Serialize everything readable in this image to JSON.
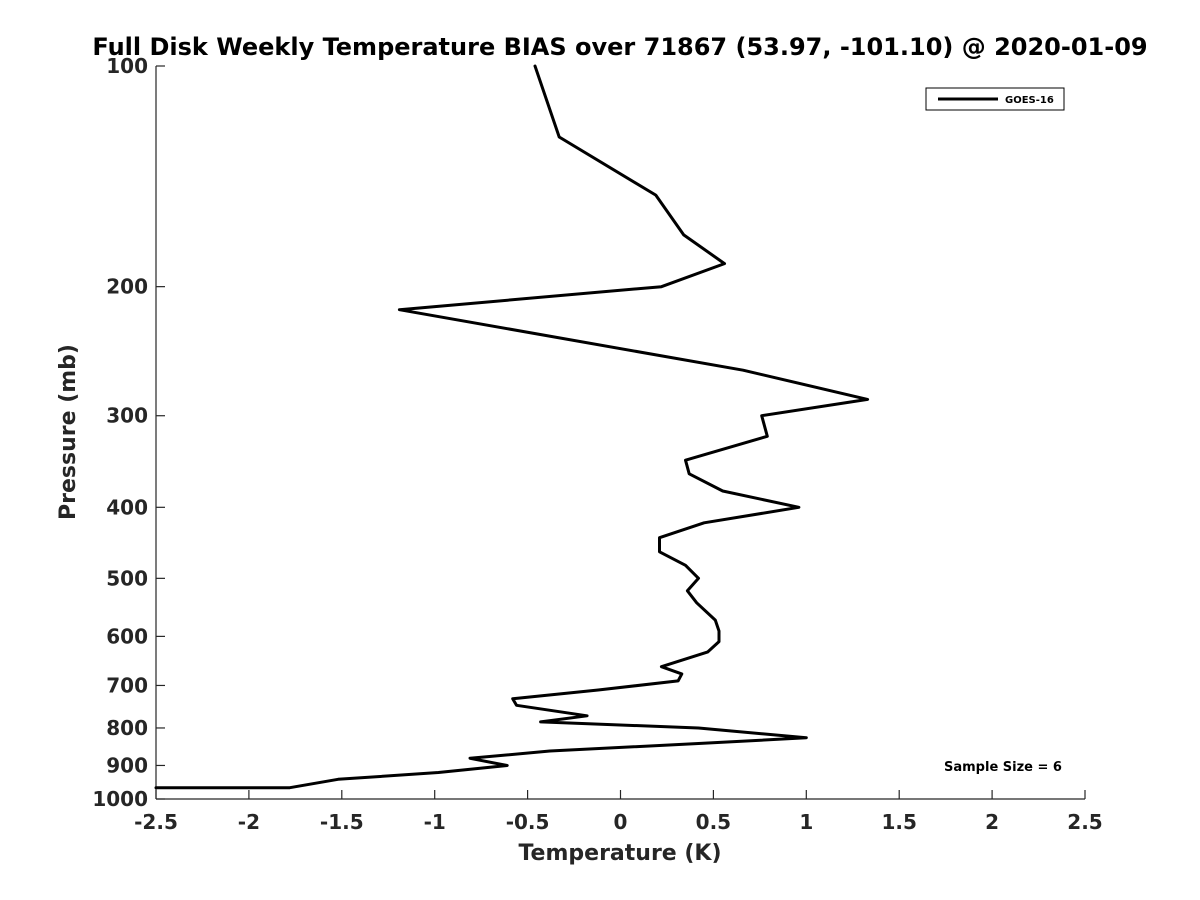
{
  "chart_data": {
    "type": "line",
    "title": "Full Disk Weekly Temperature BIAS over 71867 (53.97, -101.10) @ 2020-01-09",
    "xlabel": "Temperature (K)",
    "ylabel": "Pressure (mb)",
    "xlim": [
      -2.5,
      2.5
    ],
    "ylim": [
      1000,
      100
    ],
    "y_scale": "log",
    "grid": false,
    "xticks": [
      -2.5,
      -2,
      -1.5,
      -1,
      -0.5,
      0,
      0.5,
      1,
      1.5,
      2,
      2.5
    ],
    "xtick_labels": [
      "-2.5",
      "-2",
      "-1.5",
      "-1",
      "-0.5",
      "0",
      "0.5",
      "1",
      "1.5",
      "2",
      "2.5"
    ],
    "yticks": [
      100,
      200,
      300,
      400,
      500,
      600,
      700,
      800,
      900,
      1000
    ],
    "ytick_labels": [
      "100",
      "200",
      "300",
      "400",
      "500",
      "600",
      "700",
      "800",
      "900",
      "1000"
    ],
    "legend_position": "top-right",
    "annotation": "Sample Size = 6",
    "series": [
      {
        "name": "GOES-16",
        "color": "#000000",
        "points": [
          {
            "x": -0.46,
            "p": 100
          },
          {
            "x": -0.33,
            "p": 125
          },
          {
            "x": 0.19,
            "p": 150
          },
          {
            "x": 0.34,
            "p": 170
          },
          {
            "x": 0.56,
            "p": 186
          },
          {
            "x": 0.22,
            "p": 200
          },
          {
            "x": -1.19,
            "p": 215
          },
          {
            "x": 0.66,
            "p": 260
          },
          {
            "x": 1.33,
            "p": 285
          },
          {
            "x": 0.76,
            "p": 300
          },
          {
            "x": 0.79,
            "p": 320
          },
          {
            "x": 0.35,
            "p": 345
          },
          {
            "x": 0.37,
            "p": 360
          },
          {
            "x": 0.55,
            "p": 380
          },
          {
            "x": 0.96,
            "p": 400
          },
          {
            "x": 0.45,
            "p": 420
          },
          {
            "x": 0.21,
            "p": 440
          },
          {
            "x": 0.21,
            "p": 460
          },
          {
            "x": 0.35,
            "p": 480
          },
          {
            "x": 0.42,
            "p": 500
          },
          {
            "x": 0.36,
            "p": 520
          },
          {
            "x": 0.41,
            "p": 540
          },
          {
            "x": 0.51,
            "p": 570
          },
          {
            "x": 0.53,
            "p": 590
          },
          {
            "x": 0.53,
            "p": 610
          },
          {
            "x": 0.47,
            "p": 630
          },
          {
            "x": 0.22,
            "p": 660
          },
          {
            "x": 0.33,
            "p": 675
          },
          {
            "x": 0.31,
            "p": 690
          },
          {
            "x": -0.12,
            "p": 710
          },
          {
            "x": -0.58,
            "p": 730
          },
          {
            "x": -0.56,
            "p": 745
          },
          {
            "x": -0.18,
            "p": 770
          },
          {
            "x": -0.43,
            "p": 785
          },
          {
            "x": 0.42,
            "p": 800
          },
          {
            "x": 1.0,
            "p": 825
          },
          {
            "x": 0.42,
            "p": 840
          },
          {
            "x": -0.38,
            "p": 860
          },
          {
            "x": -0.81,
            "p": 880
          },
          {
            "x": -0.61,
            "p": 900
          },
          {
            "x": -0.98,
            "p": 920
          },
          {
            "x": -1.52,
            "p": 940
          },
          {
            "x": -1.78,
            "p": 965
          },
          {
            "x": -2.5,
            "p": 965
          }
        ]
      }
    ]
  }
}
